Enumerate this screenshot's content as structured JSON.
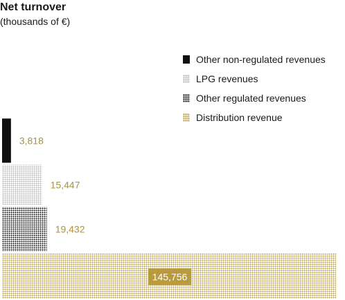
{
  "title": "Net turnover",
  "subtitle": "(thousands of €)",
  "colors": {
    "black": "#111111",
    "gray": "#b4b4b4",
    "gold": "#b99a3c",
    "value_label": "#b0913a",
    "badge_text": "#ffffff"
  },
  "legend": [
    {
      "label": "Other non-regulated revenues",
      "pattern": "solid",
      "color": "#111111"
    },
    {
      "label": "LPG revenues",
      "pattern": "dots",
      "color": "#b4b4b4"
    },
    {
      "label": "Other regulated revenues",
      "pattern": "dots",
      "color": "#111111"
    },
    {
      "label": "Distribution revenue",
      "pattern": "dots",
      "color": "#b99a3c"
    }
  ],
  "chart_data": {
    "type": "bar",
    "title": "Net turnover",
    "subtitle": "(thousands of €)",
    "legend_position": "top-right",
    "grid": false,
    "series": [
      {
        "name": "Other non-regulated revenues",
        "value": 3818,
        "label": "3,818",
        "pattern": "solid",
        "color": "#111111"
      },
      {
        "name": "LPG revenues",
        "value": 15447,
        "label": "15,447",
        "pattern": "dots",
        "color": "#b4b4b4"
      },
      {
        "name": "Other regulated revenues",
        "value": 19432,
        "label": "19,432",
        "pattern": "dots",
        "color": "#111111"
      },
      {
        "name": "Distribution revenue",
        "value": 145756,
        "label": "145,756",
        "pattern": "dots",
        "color": "#b99a3c"
      }
    ]
  }
}
